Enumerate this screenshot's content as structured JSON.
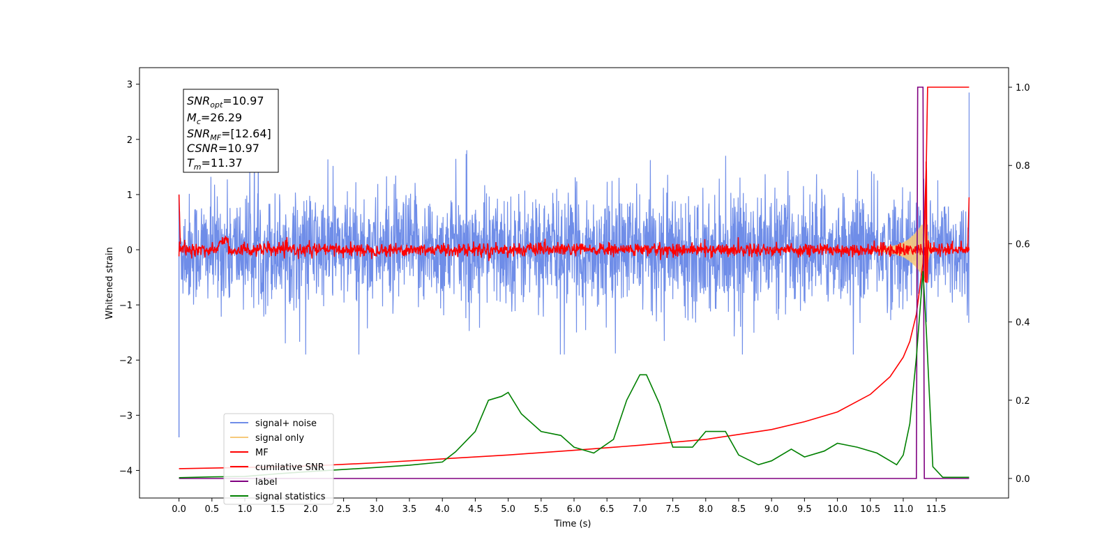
{
  "chart_data": {
    "type": "line",
    "xlabel": "Time (s)",
    "ylabel": "Whitened strain",
    "xlim": [
      -0.6,
      12.6
    ],
    "ylim": [
      -4.5,
      3.3
    ],
    "y2lim": [
      -0.05,
      1.05
    ],
    "x_ticks": [
      "0.0",
      "0.5",
      "1.0",
      "1.5",
      "2.0",
      "2.5",
      "3.0",
      "3.5",
      "4.0",
      "4.5",
      "5.0",
      "5.5",
      "6.0",
      "6.5",
      "7.0",
      "7.5",
      "8.0",
      "8.5",
      "9.0",
      "9.5",
      "10.0",
      "10.5",
      "11.0",
      "11.5"
    ],
    "y_ticks": [
      "3",
      "2",
      "1",
      "0",
      "−1",
      "−2",
      "−3",
      "−4"
    ],
    "y_tick_values": [
      3,
      2,
      1,
      0,
      -1,
      -2,
      -3,
      -4
    ],
    "y2_ticks": [
      "1.0",
      "0.8",
      "0.6",
      "0.4",
      "0.2",
      "0.0"
    ],
    "y2_tick_values": [
      1.0,
      0.8,
      0.6,
      0.4,
      0.2,
      0.0
    ],
    "annotation": {
      "snr_opt": "SNR",
      "snr_opt_sub": "opt",
      "snr_opt_val": "=10.97",
      "mc": "M",
      "mc_sub": "c",
      "mc_val": "=26.29",
      "snr_mf": "SNR",
      "snr_mf_sub": "MF",
      "snr_mf_val": "=[12.64]",
      "csnr": "CSNR",
      "csnr_val": "=10.97",
      "tm": "T",
      "tm_sub": "m",
      "tm_val": "=11.37"
    },
    "legend_position": "lower-left",
    "series": [
      {
        "name": "signal+ noise",
        "color": "#6f8de8",
        "axis": "left",
        "description": "whitened noisy strain, amplitude mostly within ±1.4, spikes to ±2"
      },
      {
        "name": "signal only",
        "color": "#f6c97a",
        "axis": "left",
        "description": "chirp growing near merger at ~11.3 s"
      },
      {
        "name": "MF",
        "color": "#ff0000",
        "axis": "left",
        "description": "matched filter output, near 0 with peak ~2 at 11.35 s"
      },
      {
        "name": "cumilative SNR",
        "color": "#ff0000",
        "axis": "right",
        "x": [
          0.0,
          1.0,
          2.0,
          3.0,
          4.0,
          5.0,
          6.0,
          7.0,
          8.0,
          9.0,
          9.5,
          10.0,
          10.5,
          10.8,
          11.0,
          11.1,
          11.2,
          11.3,
          11.35,
          11.37,
          12.0
        ],
        "y": [
          0.025,
          0.028,
          0.032,
          0.04,
          0.05,
          0.06,
          0.072,
          0.085,
          0.1,
          0.125,
          0.145,
          0.17,
          0.215,
          0.26,
          0.31,
          0.35,
          0.42,
          0.55,
          0.8,
          1.0,
          1.0
        ]
      },
      {
        "name": "label",
        "color": "#800080",
        "axis": "right",
        "x": [
          0.0,
          11.2,
          11.22,
          11.3,
          11.32,
          12.0
        ],
        "y": [
          0.0,
          0.0,
          1.0,
          1.0,
          0.0,
          0.0
        ]
      },
      {
        "name": "signal statistics",
        "color": "#008000",
        "axis": "right",
        "x": [
          0.0,
          0.5,
          1.0,
          1.5,
          2.0,
          2.5,
          3.0,
          3.5,
          4.0,
          4.2,
          4.5,
          4.7,
          4.9,
          5.0,
          5.2,
          5.5,
          5.8,
          6.0,
          6.3,
          6.6,
          6.8,
          7.0,
          7.1,
          7.3,
          7.5,
          7.8,
          8.0,
          8.3,
          8.5,
          8.8,
          9.0,
          9.3,
          9.5,
          9.8,
          10.0,
          10.3,
          10.6,
          10.9,
          11.0,
          11.1,
          11.2,
          11.3,
          11.35,
          11.45,
          11.6,
          12.0
        ],
        "y": [
          0.002,
          0.004,
          0.005,
          0.012,
          0.018,
          0.023,
          0.028,
          0.034,
          0.042,
          0.068,
          0.12,
          0.2,
          0.21,
          0.22,
          0.165,
          0.12,
          0.11,
          0.08,
          0.065,
          0.1,
          0.2,
          0.265,
          0.265,
          0.19,
          0.08,
          0.08,
          0.12,
          0.12,
          0.06,
          0.035,
          0.045,
          0.075,
          0.055,
          0.07,
          0.09,
          0.08,
          0.065,
          0.035,
          0.06,
          0.14,
          0.31,
          0.53,
          0.38,
          0.03,
          0.003,
          0.003
        ]
      }
    ]
  }
}
